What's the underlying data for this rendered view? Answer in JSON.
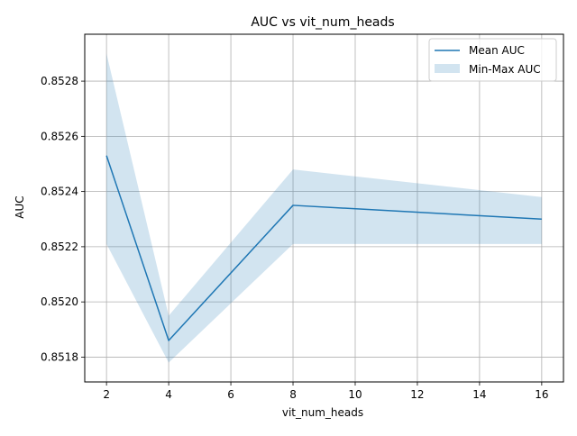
{
  "chart_data": {
    "type": "line",
    "title": "AUC vs vit_num_heads",
    "xlabel": "vit_num_heads",
    "ylabel": "AUC",
    "x": [
      2,
      4,
      8,
      16
    ],
    "series": [
      {
        "name": "Mean AUC",
        "kind": "line",
        "values": [
          0.85253,
          0.85186,
          0.85235,
          0.8523
        ],
        "color": "#1f77b4"
      },
      {
        "name": "Min-Max AUC",
        "kind": "band",
        "min": [
          0.85221,
          0.85178,
          0.85221,
          0.85221
        ],
        "max": [
          0.8529,
          0.85195,
          0.85248,
          0.85238
        ],
        "color": "#1f77b4",
        "alpha": 0.2
      }
    ],
    "xlim": [
      1.3,
      16.7
    ],
    "ylim": [
      0.85171,
      0.85297
    ],
    "xticks": [
      2,
      4,
      6,
      8,
      10,
      12,
      14,
      16
    ],
    "yticks": [
      0.8518,
      0.852,
      0.8522,
      0.8524,
      0.8526,
      0.8528
    ],
    "xtick_labels": [
      "2",
      "4",
      "6",
      "8",
      "10",
      "12",
      "14",
      "16"
    ],
    "ytick_labels": [
      "0.8518",
      "0.8520",
      "0.8522",
      "0.8524",
      "0.8526",
      "0.8528"
    ],
    "grid": true,
    "legend_position": "top-right",
    "legend": [
      "Mean AUC",
      "Min-Max AUC"
    ]
  }
}
